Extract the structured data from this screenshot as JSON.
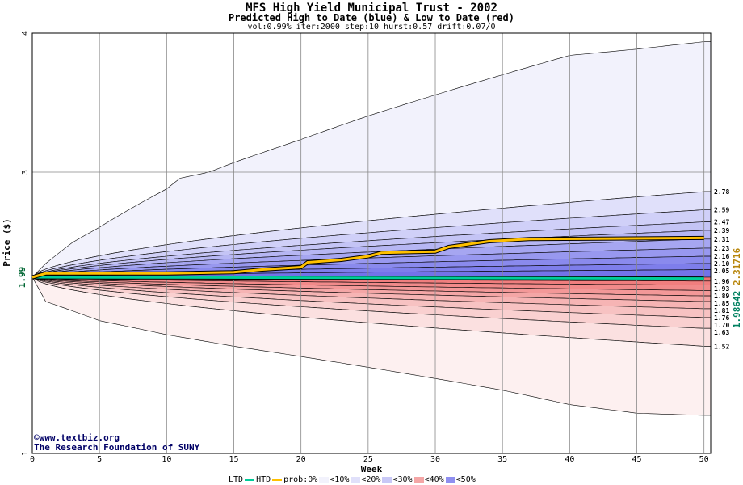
{
  "chart_data": {
    "type": "area",
    "title": "MFS High Yield Municipal Trust - 2002",
    "subtitle": "Predicted High to Date (blue) &  Low to Date (red)",
    "params": "vol:0.99% iter:2000 step:10 hurst:0.57 drift:0.07/0",
    "xlabel": "Week",
    "ylabel": "Price ($)",
    "xlim": [
      0,
      50.5
    ],
    "ylim": [
      1,
      4
    ],
    "x_log": false,
    "y_log": true,
    "x_ticks": [
      0,
      5,
      10,
      15,
      20,
      25,
      30,
      35,
      40,
      45,
      50
    ],
    "y_ticks": [
      1,
      3,
      4
    ],
    "y_marker": "1.99",
    "grid": true,
    "start_price": 1.99,
    "end_labels_high": [
      "2.78",
      "2.59",
      "2.47",
      "2.39",
      "2.31",
      "2.23",
      "2.16",
      "2.10",
      "2.05"
    ],
    "end_labels_low": [
      "1.96",
      "1.93",
      "1.89",
      "1.85",
      "1.81",
      "1.76",
      "1.70",
      "1.63",
      "1.52"
    ],
    "high_envelope": [
      [
        0,
        1.99
      ],
      [
        1,
        2.1
      ],
      [
        3,
        2.28
      ],
      [
        5,
        2.42
      ],
      [
        10,
        2.81
      ],
      [
        11,
        2.93
      ],
      [
        15,
        3.06
      ],
      [
        20,
        3.21
      ],
      [
        25,
        3.37
      ],
      [
        30,
        3.52
      ],
      [
        35,
        3.67
      ],
      [
        40,
        3.82
      ],
      [
        45,
        3.87
      ],
      [
        50,
        3.93
      ]
    ],
    "low_envelope": [
      [
        0,
        1.99
      ],
      [
        1,
        1.81
      ],
      [
        5,
        1.68
      ],
      [
        10,
        1.59
      ],
      [
        15,
        1.52
      ],
      [
        20,
        1.46
      ],
      [
        25,
        1.4
      ],
      [
        30,
        1.34
      ],
      [
        35,
        1.28
      ],
      [
        40,
        1.21
      ],
      [
        45,
        1.17
      ],
      [
        50,
        1.16
      ]
    ],
    "htd_line": [
      [
        0,
        1.99
      ],
      [
        1,
        2.02
      ],
      [
        5,
        2.02
      ],
      [
        10,
        2.02
      ],
      [
        15,
        2.03
      ],
      [
        17,
        2.05
      ],
      [
        20,
        2.07
      ],
      [
        20.5,
        2.11
      ],
      [
        23,
        2.13
      ],
      [
        25,
        2.16
      ],
      [
        26,
        2.19
      ],
      [
        30,
        2.2
      ],
      [
        31,
        2.24
      ],
      [
        34,
        2.29
      ],
      [
        37,
        2.31
      ],
      [
        50,
        2.32
      ]
    ],
    "ltd_line": [
      [
        0,
        1.99
      ],
      [
        50,
        1.98
      ]
    ],
    "right_values": {
      "htd": "2.31716",
      "ltd": "1.98642"
    },
    "colors": {
      "htd": "#ffc000",
      "ltd": "#00cc99",
      "blue_dark": "#6a6ae8",
      "red_dark": "#f07878"
    }
  },
  "legend": {
    "ltd": "LTD",
    "htd": "HTD",
    "prob": "prob:0%",
    "bands": [
      "<10%",
      "<20%",
      "<30%",
      "<40%",
      "<50%"
    ]
  },
  "credit": {
    "line1": "www.textbiz.org",
    "line2": "The Research Foundation of SUNY"
  }
}
